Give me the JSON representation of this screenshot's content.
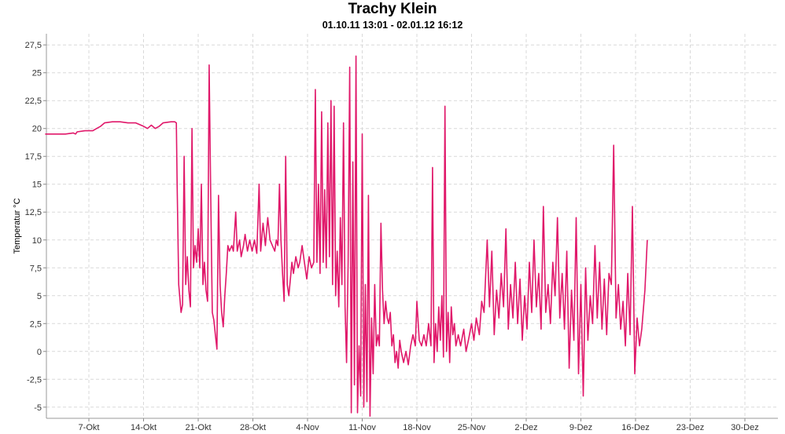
{
  "chart_data": {
    "type": "line",
    "title": "Trachy Klein",
    "subtitle": "01.10.11 13:01 - 02.01.12 16:12",
    "xlabel": "",
    "ylabel": "Temperatur °C",
    "x_ticks": [
      "7-Okt",
      "14-Okt",
      "21-Okt",
      "28-Okt",
      "4-Nov",
      "11-Nov",
      "18-Nov",
      "25-Nov",
      "2-Dez",
      "9-Dez",
      "16-Dez",
      "23-Dez",
      "30-Dez"
    ],
    "y_ticks": [
      "27,5",
      "25",
      "22,5",
      "20",
      "17,5",
      "15",
      "12,5",
      "10",
      "7,5",
      "5",
      "2,5",
      "0",
      "-2,5",
      "-5"
    ],
    "ylim": [
      -6,
      28.5
    ],
    "grid": true,
    "line_color": "#e0186a",
    "series": [
      {
        "values": [
          [
            -5.6,
            19.5
          ],
          [
            -4.0,
            19.5
          ],
          [
            -3.0,
            19.5
          ],
          [
            -2.0,
            19.6
          ],
          [
            -1.7,
            19.5
          ],
          [
            -1.5,
            19.7
          ],
          [
            -0.5,
            19.8
          ],
          [
            0.5,
            19.8
          ],
          [
            1.0,
            20.0
          ],
          [
            1.5,
            20.2
          ],
          [
            2.0,
            20.5
          ],
          [
            3.0,
            20.6
          ],
          [
            4.0,
            20.6
          ],
          [
            5.0,
            20.5
          ],
          [
            6.0,
            20.5
          ],
          [
            7.0,
            20.2
          ],
          [
            7.5,
            20.0
          ],
          [
            8.0,
            20.3
          ],
          [
            8.5,
            20.0
          ],
          [
            9.0,
            20.2
          ],
          [
            9.5,
            20.5
          ],
          [
            10.5,
            20.6
          ],
          [
            11.0,
            20.6
          ],
          [
            11.2,
            20.5
          ],
          [
            11.3,
            15.0
          ],
          [
            11.5,
            6.0
          ],
          [
            11.8,
            3.5
          ],
          [
            12.0,
            4.2
          ],
          [
            12.2,
            17.5
          ],
          [
            12.4,
            6.0
          ],
          [
            12.6,
            8.5
          ],
          [
            12.8,
            5.5
          ],
          [
            13.0,
            4.0
          ],
          [
            13.2,
            20.0
          ],
          [
            13.4,
            7.5
          ],
          [
            13.6,
            9.5
          ],
          [
            13.8,
            8.0
          ],
          [
            14.0,
            11.0
          ],
          [
            14.2,
            7.5
          ],
          [
            14.4,
            15.0
          ],
          [
            14.6,
            6.0
          ],
          [
            14.8,
            8.0
          ],
          [
            15.0,
            5.5
          ],
          [
            15.2,
            4.5
          ],
          [
            15.4,
            25.7
          ],
          [
            15.6,
            14.0
          ],
          [
            15.8,
            3.5
          ],
          [
            16.0,
            2.8
          ],
          [
            16.2,
            1.5
          ],
          [
            16.4,
            0.2
          ],
          [
            16.6,
            14.0
          ],
          [
            16.8,
            6.0
          ],
          [
            17.0,
            3.5
          ],
          [
            17.2,
            2.2
          ],
          [
            17.4,
            5.0
          ],
          [
            17.6,
            7.0
          ],
          [
            17.8,
            9.5
          ],
          [
            18.0,
            9.0
          ],
          [
            18.3,
            9.5
          ],
          [
            18.5,
            9.0
          ],
          [
            18.8,
            12.5
          ],
          [
            19.0,
            9.0
          ],
          [
            19.3,
            10.0
          ],
          [
            19.5,
            8.5
          ],
          [
            19.8,
            9.5
          ],
          [
            20.0,
            10.5
          ],
          [
            20.3,
            9.0
          ],
          [
            20.6,
            10.0
          ],
          [
            20.9,
            9.0
          ],
          [
            21.2,
            10.0
          ],
          [
            21.5,
            8.8
          ],
          [
            21.8,
            15.0
          ],
          [
            22.0,
            9.0
          ],
          [
            22.3,
            11.5
          ],
          [
            22.6,
            9.5
          ],
          [
            22.9,
            12.0
          ],
          [
            23.2,
            10.0
          ],
          [
            23.5,
            9.5
          ],
          [
            23.8,
            9.0
          ],
          [
            24.0,
            10.0
          ],
          [
            24.2,
            9.5
          ],
          [
            24.4,
            15.0
          ],
          [
            24.6,
            10.0
          ],
          [
            24.8,
            7.0
          ],
          [
            25.0,
            4.5
          ],
          [
            25.2,
            17.5
          ],
          [
            25.4,
            6.0
          ],
          [
            25.6,
            5.0
          ],
          [
            25.8,
            6.5
          ],
          [
            26.0,
            8.0
          ],
          [
            26.2,
            7.0
          ],
          [
            26.5,
            8.5
          ],
          [
            26.8,
            7.5
          ],
          [
            27.0,
            8.0
          ],
          [
            27.3,
            9.5
          ],
          [
            27.6,
            8.0
          ],
          [
            27.9,
            6.5
          ],
          [
            28.2,
            8.5
          ],
          [
            28.5,
            7.5
          ],
          [
            28.8,
            8.0
          ],
          [
            29.0,
            23.5
          ],
          [
            29.2,
            8.0
          ],
          [
            29.4,
            15.0
          ],
          [
            29.6,
            7.0
          ],
          [
            29.8,
            21.5
          ],
          [
            30.0,
            8.0
          ],
          [
            30.2,
            14.5
          ],
          [
            30.4,
            7.5
          ],
          [
            30.6,
            20.5
          ],
          [
            30.8,
            8.5
          ],
          [
            31.0,
            22.5
          ],
          [
            31.2,
            6.0
          ],
          [
            31.4,
            22.0
          ],
          [
            31.6,
            5.0
          ],
          [
            31.8,
            9.0
          ],
          [
            32.0,
            4.0
          ],
          [
            32.2,
            12.0
          ],
          [
            32.4,
            6.0
          ],
          [
            32.6,
            20.5
          ],
          [
            32.8,
            4.0
          ],
          [
            33.0,
            -1.0
          ],
          [
            33.2,
            8.0
          ],
          [
            33.4,
            25.5
          ],
          [
            33.6,
            -5.5
          ],
          [
            33.8,
            17.0
          ],
          [
            34.0,
            -3.0
          ],
          [
            34.2,
            26.5
          ],
          [
            34.4,
            -5.5
          ],
          [
            34.6,
            0.5
          ],
          [
            34.8,
            -4.0
          ],
          [
            35.0,
            19.5
          ],
          [
            35.2,
            -5.0
          ],
          [
            35.4,
            6.0
          ],
          [
            35.6,
            -4.5
          ],
          [
            35.8,
            14.0
          ],
          [
            36.0,
            -5.8
          ],
          [
            36.2,
            3.0
          ],
          [
            36.4,
            -2.0
          ],
          [
            36.6,
            6.0
          ],
          [
            36.8,
            0.5
          ],
          [
            37.0,
            1.5
          ],
          [
            37.2,
            0.5
          ],
          [
            37.4,
            11.5
          ],
          [
            37.6,
            5.5
          ],
          [
            37.8,
            2.5
          ],
          [
            38.0,
            4.5
          ],
          [
            38.2,
            3.0
          ],
          [
            38.4,
            2.5
          ],
          [
            38.6,
            3.5
          ],
          [
            38.8,
            0.5
          ],
          [
            39.0,
            1.5
          ],
          [
            39.2,
            -1.0
          ],
          [
            39.4,
            0.0
          ],
          [
            39.6,
            -1.5
          ],
          [
            39.8,
            1.0
          ],
          [
            40.0,
            0.0
          ],
          [
            40.3,
            -1.0
          ],
          [
            40.6,
            0.0
          ],
          [
            40.9,
            -1.2
          ],
          [
            41.2,
            0.5
          ],
          [
            41.5,
            1.5
          ],
          [
            41.8,
            0.5
          ],
          [
            42.0,
            4.5
          ],
          [
            42.3,
            1.0
          ],
          [
            42.6,
            0.5
          ],
          [
            42.9,
            1.5
          ],
          [
            43.2,
            0.5
          ],
          [
            43.5,
            2.5
          ],
          [
            43.8,
            0.5
          ],
          [
            44.0,
            16.5
          ],
          [
            44.2,
            -1.0
          ],
          [
            44.4,
            2.5
          ],
          [
            44.6,
            0.0
          ],
          [
            44.8,
            4.0
          ],
          [
            45.0,
            1.0
          ],
          [
            45.2,
            5.0
          ],
          [
            45.4,
            -0.5
          ],
          [
            45.6,
            22.0
          ],
          [
            45.8,
            0.0
          ],
          [
            46.0,
            3.5
          ],
          [
            46.2,
            -1.0
          ],
          [
            46.4,
            4.0
          ],
          [
            46.6,
            1.5
          ],
          [
            46.8,
            2.5
          ],
          [
            47.0,
            0.5
          ],
          [
            47.3,
            1.5
          ],
          [
            47.6,
            0.5
          ],
          [
            48.0,
            2.0
          ],
          [
            48.3,
            0.0
          ],
          [
            48.6,
            1.0
          ],
          [
            49.0,
            2.5
          ],
          [
            49.3,
            1.0
          ],
          [
            49.6,
            3.0
          ],
          [
            50.0,
            1.5
          ],
          [
            50.3,
            4.5
          ],
          [
            50.6,
            3.5
          ],
          [
            51.0,
            10.0
          ],
          [
            51.3,
            4.0
          ],
          [
            51.6,
            9.0
          ],
          [
            51.9,
            1.5
          ],
          [
            52.2,
            5.5
          ],
          [
            52.5,
            3.0
          ],
          [
            52.8,
            7.0
          ],
          [
            53.1,
            4.0
          ],
          [
            53.4,
            11.0
          ],
          [
            53.7,
            2.0
          ],
          [
            54.0,
            6.0
          ],
          [
            54.3,
            3.0
          ],
          [
            54.6,
            8.0
          ],
          [
            54.9,
            2.5
          ],
          [
            55.2,
            6.5
          ],
          [
            55.5,
            1.0
          ],
          [
            55.8,
            5.0
          ],
          [
            56.1,
            2.0
          ],
          [
            56.4,
            8.0
          ],
          [
            56.7,
            3.5
          ],
          [
            57.0,
            10.0
          ],
          [
            57.3,
            4.0
          ],
          [
            57.6,
            7.0
          ],
          [
            57.9,
            2.0
          ],
          [
            58.2,
            13.0
          ],
          [
            58.5,
            3.5
          ],
          [
            58.8,
            6.0
          ],
          [
            59.1,
            2.5
          ],
          [
            59.4,
            8.0
          ],
          [
            59.7,
            5.0
          ],
          [
            60.0,
            12.0
          ],
          [
            60.3,
            3.0
          ],
          [
            60.6,
            7.0
          ],
          [
            60.9,
            2.0
          ],
          [
            61.2,
            9.0
          ],
          [
            61.5,
            -1.5
          ],
          [
            61.8,
            5.5
          ],
          [
            62.1,
            1.0
          ],
          [
            62.4,
            12.0
          ],
          [
            62.7,
            -2.0
          ],
          [
            63.0,
            6.0
          ],
          [
            63.3,
            -4.0
          ],
          [
            63.6,
            7.5
          ],
          [
            63.9,
            1.0
          ],
          [
            64.2,
            5.0
          ],
          [
            64.5,
            2.5
          ],
          [
            64.8,
            9.5
          ],
          [
            65.1,
            3.0
          ],
          [
            65.4,
            8.0
          ],
          [
            65.7,
            2.0
          ],
          [
            66.0,
            6.5
          ],
          [
            66.3,
            1.5
          ],
          [
            66.6,
            7.0
          ],
          [
            66.9,
            6.0
          ],
          [
            67.2,
            18.5
          ],
          [
            67.5,
            3.0
          ],
          [
            67.8,
            6.0
          ],
          [
            68.1,
            2.0
          ],
          [
            68.4,
            4.5
          ],
          [
            68.7,
            0.5
          ],
          [
            69.0,
            7.0
          ],
          [
            69.3,
            1.5
          ],
          [
            69.6,
            13.0
          ],
          [
            69.9,
            -2.0
          ],
          [
            70.2,
            3.0
          ],
          [
            70.5,
            0.5
          ],
          [
            70.8,
            2.0
          ],
          [
            71.2,
            5.5
          ],
          [
            71.5,
            10.0
          ]
        ]
      }
    ]
  }
}
